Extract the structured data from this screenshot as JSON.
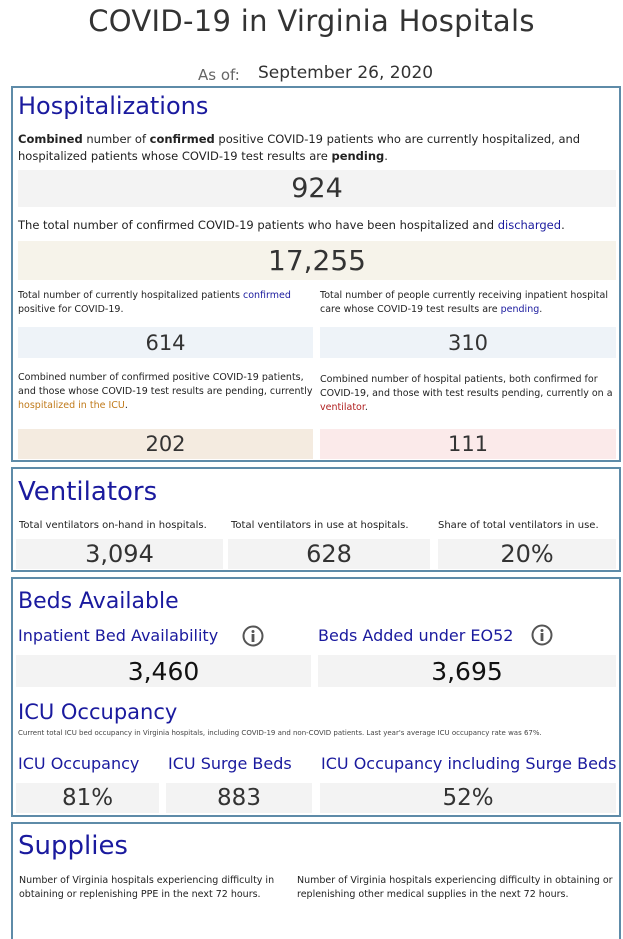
{
  "header": {
    "title": "COVID-19 in Virginia Hospitals",
    "as_of_label": "As of:",
    "as_of_date": "September 26, 2020"
  },
  "hospitalizations": {
    "title": "Hospitalizations",
    "combined_desc": {
      "part1": "Combined",
      "part2": " number of ",
      "part3": "confirmed",
      "part4": " positive COVID-19 patients who are currently hospitalized, and hospitalized patients whose COVID-19 test results are ",
      "part5": "pending",
      "part6": "."
    },
    "combined_value": "924",
    "discharged_desc": {
      "part1": "The total number of confirmed COVID-19 patients who have been hospitalized and ",
      "part2": "discharged",
      "part3": "."
    },
    "discharged_value": "17,255",
    "confirmed_desc": {
      "part1": "Total number of currently hospitalized patients ",
      "part2": "confirmed",
      "part3": " positive for COVID-19."
    },
    "confirmed_value": "614",
    "pending_desc": {
      "part1": "Total number of people currently receiving inpatient hospital care whose COVID-19 test results are ",
      "part2": "pending",
      "part3": "."
    },
    "pending_value": "310",
    "icu_desc": {
      "part1": "Combined number of confirmed positive COVID-19 patients, and those whose COVID-19 test results are pending, currently ",
      "part2": "hospitalized in the ICU",
      "part3": "."
    },
    "icu_value": "202",
    "ventilator_desc": {
      "part1": "Combined number of hospital patients, both confirmed for COVID-19, and those with test results pending, currently on a ",
      "part2": "ventilator",
      "part3": "."
    },
    "ventilator_value": "111"
  },
  "ventilators": {
    "title": "Ventilators",
    "on_hand_label": "Total ventilators on-hand in hospitals.",
    "on_hand_value": "3,094",
    "in_use_label": "Total ventilators in use at hospitals.",
    "in_use_value": "628",
    "share_label": "Share of total ventilators in use.",
    "share_value": "20%"
  },
  "beds": {
    "title": "Beds Available",
    "inpatient_label": "Inpatient Bed Availability",
    "inpatient_value": "3,460",
    "eo52_label": "Beds Added under EO52",
    "eo52_value": "3,695",
    "icu_title": "ICU Occupancy",
    "icu_note": "Current total ICU bed occupancy in Virginia hospitals, including COVID-19 and non-COVID patients. Last year's average ICU occupancy rate was 67%.",
    "icu_occupancy_label": "ICU Occupancy",
    "icu_occupancy_value": "81%",
    "icu_surge_label": "ICU Surge Beds",
    "icu_surge_value": "883",
    "icu_including_label": "ICU Occupancy including Surge Beds",
    "icu_including_value": "52%"
  },
  "supplies": {
    "title": "Supplies",
    "ppe_desc": "Number of Virginia hospitals experiencing difficulty in obtaining or replenishing PPE in the next 72 hours.",
    "other_desc": "Number of Virginia hospitals experiencing difficulty in obtaining or replenishing other medical supplies in the next 72 hours."
  },
  "colors": {
    "accent_blue": "#1a1a9e",
    "panel_border": "#5e8ba8",
    "icu_highlight": "#c07a1a",
    "ventilator_highlight": "#b02020"
  },
  "icons": {
    "info": "info-circle-icon"
  }
}
